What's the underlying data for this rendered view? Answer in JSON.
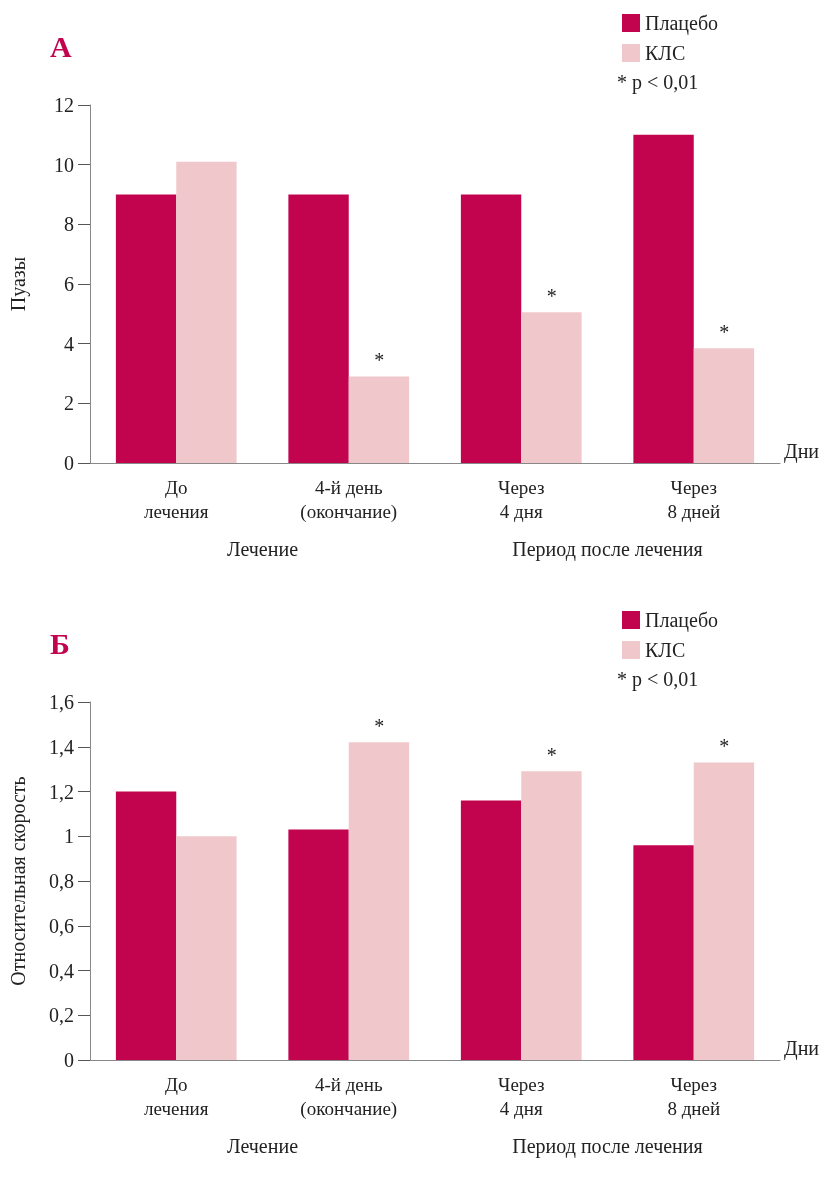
{
  "chart_data": [
    {
      "type": "bar",
      "title": "А",
      "ylabel": "Пуазы",
      "xlabel": "Дни",
      "categories": [
        "До\nлечения",
        "4-й день\n(окончание)",
        "Через\n4 дня",
        "Через\n8 дней"
      ],
      "series": [
        {
          "name": "Плацебо",
          "color": "#c2044f",
          "values": [
            9,
            9,
            9,
            11
          ]
        },
        {
          "name": "КЛС",
          "color": "#f0c8cc",
          "values": [
            10.1,
            2.9,
            5.05,
            3.85
          ]
        }
      ],
      "ylim": [
        0,
        12
      ],
      "yticks": [
        0,
        2,
        4,
        6,
        8,
        10,
        12
      ],
      "grid": false,
      "legend": "top right",
      "annotations": [
        "* p < 0,01",
        "Лечение",
        "Период после лечения",
        {
          "text": "*",
          "x": "4-й день\n(окончание)",
          "y": 2.9
        },
        {
          "text": "*",
          "x": "Через\n4 дня",
          "y": 5.05
        },
        {
          "text": "*",
          "x": "Через\n8 дней",
          "y": 3.85
        }
      ]
    },
    {
      "type": "bar",
      "title": "Б",
      "ylabel": "Относительная скорость",
      "xlabel": "Дни",
      "categories": [
        "До\nлечения",
        "4-й день\n(окончание)",
        "Через\n4 дня",
        "Через\n8 дней"
      ],
      "series": [
        {
          "name": "Плацебо",
          "color": "#c2044f",
          "values": [
            1.2,
            1.03,
            1.16,
            0.96
          ]
        },
        {
          "name": "КЛС",
          "color": "#f0c8cc",
          "values": [
            1.0,
            1.42,
            1.29,
            1.33
          ]
        }
      ],
      "ylim": [
        0,
        1.6
      ],
      "yticks": [
        0,
        {
          "value": 0.2,
          "label": "0,2"
        },
        {
          "value": 0.4,
          "label": "0,4"
        },
        {
          "value": 0.6,
          "label": "0,6"
        },
        {
          "value": 0.8,
          "label": "0,8"
        },
        1,
        {
          "value": 1.2,
          "label": "1,2"
        },
        {
          "value": 1.4,
          "label": "1,4"
        },
        {
          "value": 1.6,
          "label": "1,6"
        }
      ],
      "grid": false,
      "legend": "top right",
      "annotations": [
        "* p < 0,01",
        "Лечение",
        "Период после лечения",
        {
          "text": "*",
          "x": "4-й день\n(окончание)",
          "y": 1.42
        },
        {
          "text": "*",
          "x": "Через\n4 дня",
          "y": 1.29
        },
        {
          "text": "*",
          "x": "Через\n8 дней",
          "y": 1.33
        }
      ]
    }
  ]
}
